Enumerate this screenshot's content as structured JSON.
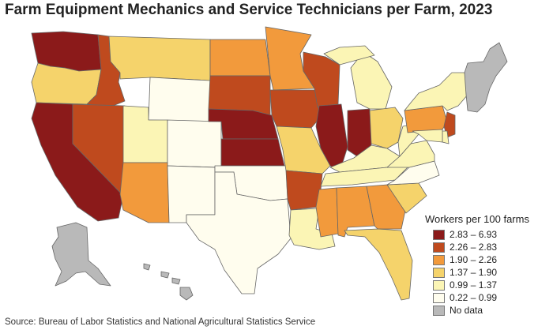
{
  "title": "Farm Equipment Mechanics and Service Technicians per Farm, 2023",
  "source": "Source: Bureau of Labor Statistics and National Agricultural Statistics Service",
  "legend": {
    "title": "Workers per 100 farms",
    "items": [
      {
        "label": "2.83 – 6.93",
        "color": "#8b1a1a"
      },
      {
        "label": "2.26 – 2.83",
        "color": "#bf4a1e"
      },
      {
        "label": "1.90 – 2.26",
        "color": "#f29a3c"
      },
      {
        "label": "1.37 – 1.90",
        "color": "#f5d36b"
      },
      {
        "label": "0.99 – 1.37",
        "color": "#fbf5b5"
      },
      {
        "label": "0.22 – 0.99",
        "color": "#fffdee"
      },
      {
        "label": "No data",
        "color": "#b9b9b9"
      }
    ]
  },
  "states": [
    {
      "name": "Washington",
      "class": 0
    },
    {
      "name": "Oregon",
      "class": 3
    },
    {
      "name": "California",
      "class": 0
    },
    {
      "name": "Idaho",
      "class": 1
    },
    {
      "name": "Nevada",
      "class": 1
    },
    {
      "name": "Montana",
      "class": 3
    },
    {
      "name": "Wyoming",
      "class": 5
    },
    {
      "name": "Utah",
      "class": 4
    },
    {
      "name": "Colorado",
      "class": 5
    },
    {
      "name": "Arizona",
      "class": 2
    },
    {
      "name": "New Mexico",
      "class": 5
    },
    {
      "name": "North Dakota",
      "class": 2
    },
    {
      "name": "South Dakota",
      "class": 1
    },
    {
      "name": "Nebraska",
      "class": 0
    },
    {
      "name": "Kansas",
      "class": 0
    },
    {
      "name": "Oklahoma",
      "class": 5
    },
    {
      "name": "Texas",
      "class": 5
    },
    {
      "name": "Minnesota",
      "class": 2
    },
    {
      "name": "Iowa",
      "class": 1
    },
    {
      "name": "Missouri",
      "class": 3
    },
    {
      "name": "Arkansas",
      "class": 1
    },
    {
      "name": "Louisiana",
      "class": 4
    },
    {
      "name": "Wisconsin",
      "class": 1
    },
    {
      "name": "Illinois",
      "class": 0
    },
    {
      "name": "Indiana",
      "class": 0
    },
    {
      "name": "Michigan",
      "class": 4
    },
    {
      "name": "Ohio",
      "class": 3
    },
    {
      "name": "Kentucky",
      "class": 4
    },
    {
      "name": "Tennessee",
      "class": 4
    },
    {
      "name": "Mississippi",
      "class": 2
    },
    {
      "name": "Alabama",
      "class": 2
    },
    {
      "name": "Georgia",
      "class": 2
    },
    {
      "name": "Florida",
      "class": 3
    },
    {
      "name": "South Carolina",
      "class": 3
    },
    {
      "name": "North Carolina",
      "class": 5
    },
    {
      "name": "Virginia",
      "class": 4
    },
    {
      "name": "West Virginia",
      "class": 4
    },
    {
      "name": "Pennsylvania",
      "class": 2
    },
    {
      "name": "New York",
      "class": 4
    },
    {
      "name": "New Jersey",
      "class": 1
    },
    {
      "name": "Delaware",
      "class": 4
    },
    {
      "name": "Maryland",
      "class": 4
    },
    {
      "name": "New England",
      "class": 6
    },
    {
      "name": "Alaska",
      "class": 6
    },
    {
      "name": "Hawaii",
      "class": 6
    }
  ]
}
